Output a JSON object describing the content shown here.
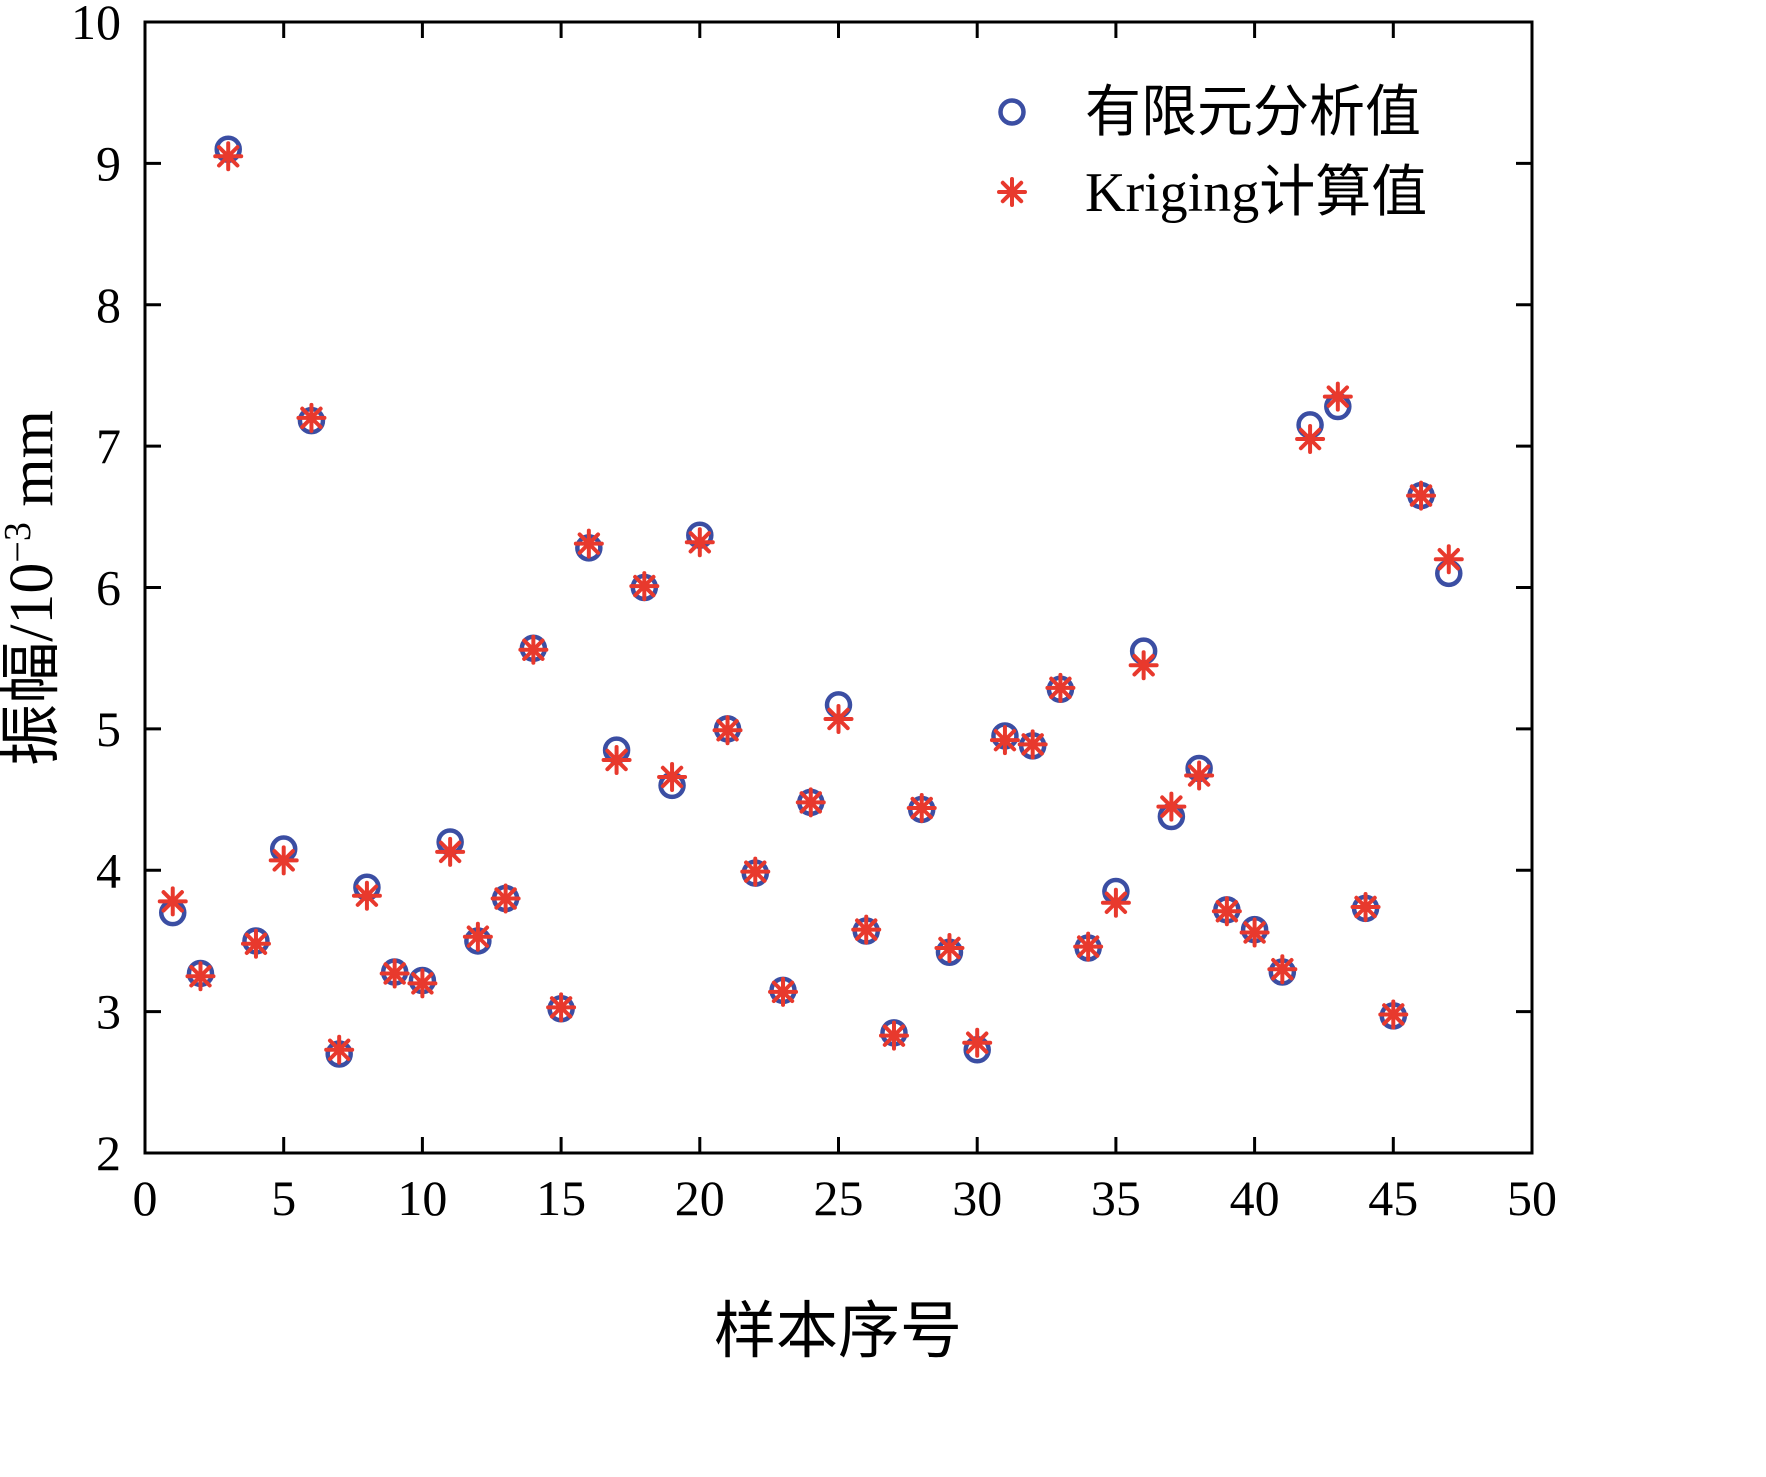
{
  "figure": {
    "background": "#ffffff"
  },
  "axes": {
    "x_label": "样本序号",
    "y_label_prefix": "振幅/10",
    "y_label_sup": "−3",
    "y_label_suffix": " mm",
    "x_ticks": [
      0,
      5,
      10,
      15,
      20,
      25,
      30,
      35,
      40,
      45,
      50
    ],
    "y_ticks": [
      2,
      3,
      4,
      5,
      6,
      7,
      8,
      9,
      10
    ],
    "x_range": [
      0,
      50
    ],
    "y_range": [
      2,
      10
    ]
  },
  "legend": {
    "position": "top-right",
    "items": [
      {
        "label": "有限元分析值",
        "marker": "circle",
        "color": "#3B4EA3"
      },
      {
        "label": "Kriging计算值",
        "marker": "asterisk",
        "color": "#E8392D"
      }
    ]
  },
  "chart_data": {
    "type": "scatter",
    "title": "",
    "xlabel": "样本序号",
    "ylabel": "振幅/10^-3 mm",
    "xlim": [
      0,
      50
    ],
    "ylim": [
      2,
      10
    ],
    "grid": false,
    "legend_position": "top-right",
    "x": [
      1,
      2,
      3,
      4,
      5,
      6,
      7,
      8,
      9,
      10,
      11,
      12,
      13,
      14,
      15,
      16,
      17,
      18,
      19,
      20,
      21,
      22,
      23,
      24,
      25,
      26,
      27,
      28,
      29,
      30,
      31,
      32,
      33,
      34,
      35,
      36,
      37,
      38,
      39,
      40,
      41,
      42,
      43,
      44,
      45,
      46,
      47
    ],
    "series": [
      {
        "name": "有限元分析值",
        "marker": "circle",
        "color": "#3B4EA3",
        "values": [
          3.7,
          3.27,
          9.1,
          3.5,
          4.15,
          7.18,
          2.7,
          3.88,
          3.28,
          3.22,
          4.2,
          3.5,
          3.8,
          5.57,
          3.02,
          6.28,
          4.85,
          6.0,
          4.6,
          6.37,
          5.0,
          3.98,
          3.15,
          4.48,
          5.17,
          3.57,
          2.85,
          4.43,
          3.42,
          2.73,
          4.95,
          4.88,
          5.28,
          3.45,
          3.85,
          5.55,
          4.38,
          4.72,
          3.72,
          3.58,
          3.28,
          7.15,
          7.28,
          3.73,
          2.97,
          6.65,
          6.1
        ]
      },
      {
        "name": "Kriging计算值",
        "marker": "asterisk",
        "color": "#E8392D",
        "values": [
          3.78,
          3.25,
          9.05,
          3.48,
          4.07,
          7.2,
          2.73,
          3.82,
          3.27,
          3.2,
          4.13,
          3.53,
          3.8,
          5.56,
          3.03,
          6.31,
          4.78,
          6.01,
          4.66,
          6.32,
          4.99,
          3.99,
          3.14,
          4.48,
          5.07,
          3.58,
          2.83,
          4.44,
          3.45,
          2.78,
          4.92,
          4.89,
          5.29,
          3.46,
          3.77,
          5.45,
          4.45,
          4.67,
          3.71,
          3.56,
          3.3,
          7.05,
          7.35,
          3.74,
          2.98,
          6.65,
          6.2
        ]
      }
    ]
  }
}
